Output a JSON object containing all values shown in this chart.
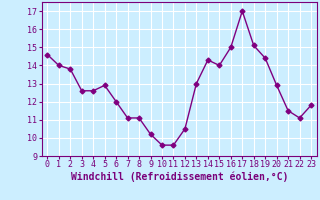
{
  "x": [
    0,
    1,
    2,
    3,
    4,
    5,
    6,
    7,
    8,
    9,
    10,
    11,
    12,
    13,
    14,
    15,
    16,
    17,
    18,
    19,
    20,
    21,
    22,
    23
  ],
  "y": [
    14.6,
    14.0,
    13.8,
    12.6,
    12.6,
    12.9,
    12.0,
    11.1,
    11.1,
    10.2,
    9.6,
    9.6,
    10.5,
    13.0,
    14.3,
    14.0,
    15.0,
    17.0,
    15.1,
    14.4,
    12.9,
    11.5,
    11.1,
    11.8
  ],
  "line_color": "#800080",
  "marker": "D",
  "marker_size": 2.5,
  "line_width": 1.0,
  "bg_color": "#cceeff",
  "grid_color": "#ffffff",
  "xlabel": "Windchill (Refroidissement éolien,°C)",
  "xlim": [
    -0.5,
    23.5
  ],
  "ylim": [
    9,
    17.5
  ],
  "yticks": [
    9,
    10,
    11,
    12,
    13,
    14,
    15,
    16,
    17
  ],
  "xticks": [
    0,
    1,
    2,
    3,
    4,
    5,
    6,
    7,
    8,
    9,
    10,
    11,
    12,
    13,
    14,
    15,
    16,
    17,
    18,
    19,
    20,
    21,
    22,
    23
  ],
  "tick_fontsize": 6,
  "xlabel_fontsize": 7,
  "spine_color": "#7a007a"
}
